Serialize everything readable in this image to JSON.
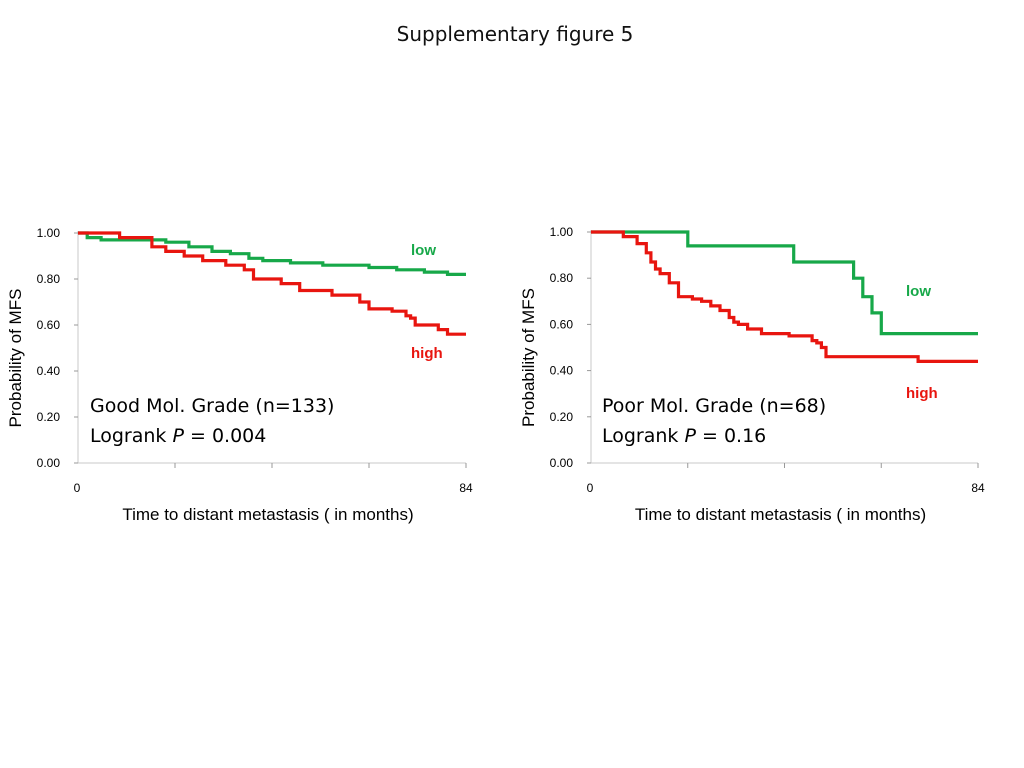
{
  "title": "Supplementary figure 5",
  "colors": {
    "low": "#17a849",
    "high": "#e8150f"
  },
  "chart_data": [
    {
      "type": "line",
      "step": true,
      "xlabel": "Time to distant metastasis ( in months)",
      "ylabel": "Probability of MFS",
      "xlim": [
        0,
        84
      ],
      "ylim": [
        0,
        1
      ],
      "xtick_labels": [
        "0",
        "84"
      ],
      "yticks": [
        "0.00",
        "0.20",
        "0.40",
        "0.60",
        "0.80",
        "1.00"
      ],
      "annotation": {
        "line1": "Good Mol. Grade (n=133)",
        "line2_prefix": "Logrank ",
        "line2_italic": "P",
        "line2_suffix": " = 0.004"
      },
      "series": [
        {
          "name": "low",
          "color": "#17a849",
          "x": [
            0,
            2,
            5,
            14,
            19,
            24,
            29,
            33,
            37,
            40,
            46,
            53,
            58,
            63,
            69,
            75,
            80,
            84
          ],
          "y": [
            1.0,
            0.98,
            0.97,
            0.97,
            0.96,
            0.94,
            0.92,
            0.91,
            0.89,
            0.88,
            0.87,
            0.86,
            0.86,
            0.85,
            0.84,
            0.83,
            0.82,
            0.82
          ]
        },
        {
          "name": "high",
          "color": "#e8150f",
          "x": [
            0,
            9,
            16,
            19,
            23,
            27,
            32,
            36,
            38,
            44,
            48,
            55,
            61,
            63,
            68,
            71,
            72,
            73,
            78,
            80,
            84
          ],
          "y": [
            1.0,
            0.98,
            0.94,
            0.92,
            0.9,
            0.88,
            0.86,
            0.84,
            0.8,
            0.78,
            0.75,
            0.73,
            0.7,
            0.67,
            0.66,
            0.64,
            0.63,
            0.6,
            0.58,
            0.56,
            0.56
          ]
        }
      ]
    },
    {
      "type": "line",
      "step": true,
      "xlabel": "Time to distant metastasis ( in months)",
      "ylabel": "Probability of MFS",
      "xlim": [
        0,
        84
      ],
      "ylim": [
        0,
        1
      ],
      "xtick_labels": [
        "0",
        "84"
      ],
      "yticks": [
        "0.00",
        "0.20",
        "0.40",
        "0.60",
        "0.80",
        "1.00"
      ],
      "annotation": {
        "line1": "Poor Mol. Grade (n=68)",
        "line2_prefix": "Logrank ",
        "line2_italic": "P",
        "line2_suffix": " = 0.16"
      },
      "series": [
        {
          "name": "low",
          "color": "#17a849",
          "x": [
            0,
            21,
            44,
            57,
            59,
            61,
            63,
            84
          ],
          "y": [
            1.0,
            0.94,
            0.87,
            0.8,
            0.72,
            0.65,
            0.56,
            0.56
          ]
        },
        {
          "name": "high",
          "color": "#e8150f",
          "x": [
            0,
            7,
            10,
            12,
            13,
            14,
            15,
            17,
            19,
            22,
            24,
            26,
            28,
            30,
            31,
            32,
            34,
            37,
            43,
            48,
            49,
            50,
            51,
            65,
            71,
            84
          ],
          "y": [
            1.0,
            0.98,
            0.95,
            0.91,
            0.87,
            0.84,
            0.82,
            0.78,
            0.72,
            0.71,
            0.7,
            0.68,
            0.66,
            0.63,
            0.61,
            0.6,
            0.58,
            0.56,
            0.55,
            0.53,
            0.52,
            0.5,
            0.46,
            0.46,
            0.44,
            0.44
          ]
        }
      ]
    }
  ]
}
